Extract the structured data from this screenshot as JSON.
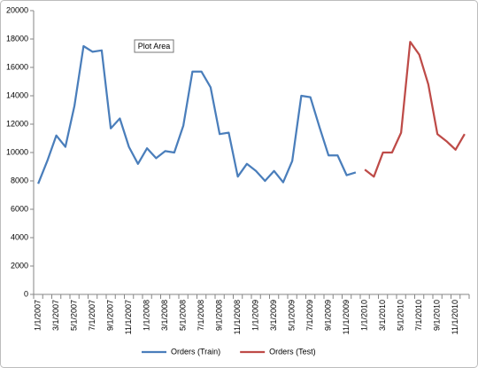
{
  "chart_data": {
    "type": "line",
    "tooltip": "Plot Area",
    "categories": [
      "1/1/2007",
      null,
      "3/1/2007",
      null,
      "5/1/2007",
      null,
      "7/1/2007",
      null,
      "9/1/2007",
      null,
      "11/1/2007",
      null,
      "1/1/2008",
      null,
      "3/1/2008",
      null,
      "5/1/2008",
      null,
      "7/1/2008",
      null,
      "9/1/2008",
      null,
      "11/1/2008",
      null,
      "1/1/2009",
      null,
      "3/1/2009",
      null,
      "5/1/2009",
      null,
      "7/1/2009",
      null,
      "9/1/2009",
      null,
      "11/1/2009",
      null,
      "1/1/2010",
      null,
      "3/1/2010",
      null,
      "5/1/2010",
      null,
      "7/1/2010",
      null,
      "9/1/2010",
      null,
      "11/1/2010",
      null
    ],
    "series": [
      {
        "name": "Orders (Train)",
        "color": "#4a7ebb",
        "values": [
          7800,
          9400,
          11200,
          10400,
          13300,
          17500,
          17100,
          17200,
          11700,
          12400,
          10400,
          9200,
          10300,
          9600,
          10100,
          10000,
          11900,
          15700,
          15700,
          14600,
          11300,
          11400,
          8300,
          9200,
          8700,
          8000,
          8700,
          7900,
          9400,
          14000,
          13900,
          11800,
          9800,
          9800,
          8400,
          8600,
          null,
          null,
          null,
          null,
          null,
          null,
          null,
          null,
          null,
          null,
          null,
          null
        ]
      },
      {
        "name": "Orders (Test)",
        "color": "#be4b48",
        "values": [
          null,
          null,
          null,
          null,
          null,
          null,
          null,
          null,
          null,
          null,
          null,
          null,
          null,
          null,
          null,
          null,
          null,
          null,
          null,
          null,
          null,
          null,
          null,
          null,
          null,
          null,
          null,
          null,
          null,
          null,
          null,
          null,
          null,
          null,
          null,
          null,
          8800,
          8300,
          10000,
          10000,
          11400,
          17800,
          16900,
          14800,
          11300,
          10800,
          10200,
          11300
        ]
      }
    ],
    "ylim": [
      0,
      20000
    ],
    "yticks": [
      0,
      2000,
      4000,
      6000,
      8000,
      10000,
      12000,
      14000,
      16000,
      18000,
      20000
    ],
    "grid": false,
    "legend": "bottom"
  }
}
